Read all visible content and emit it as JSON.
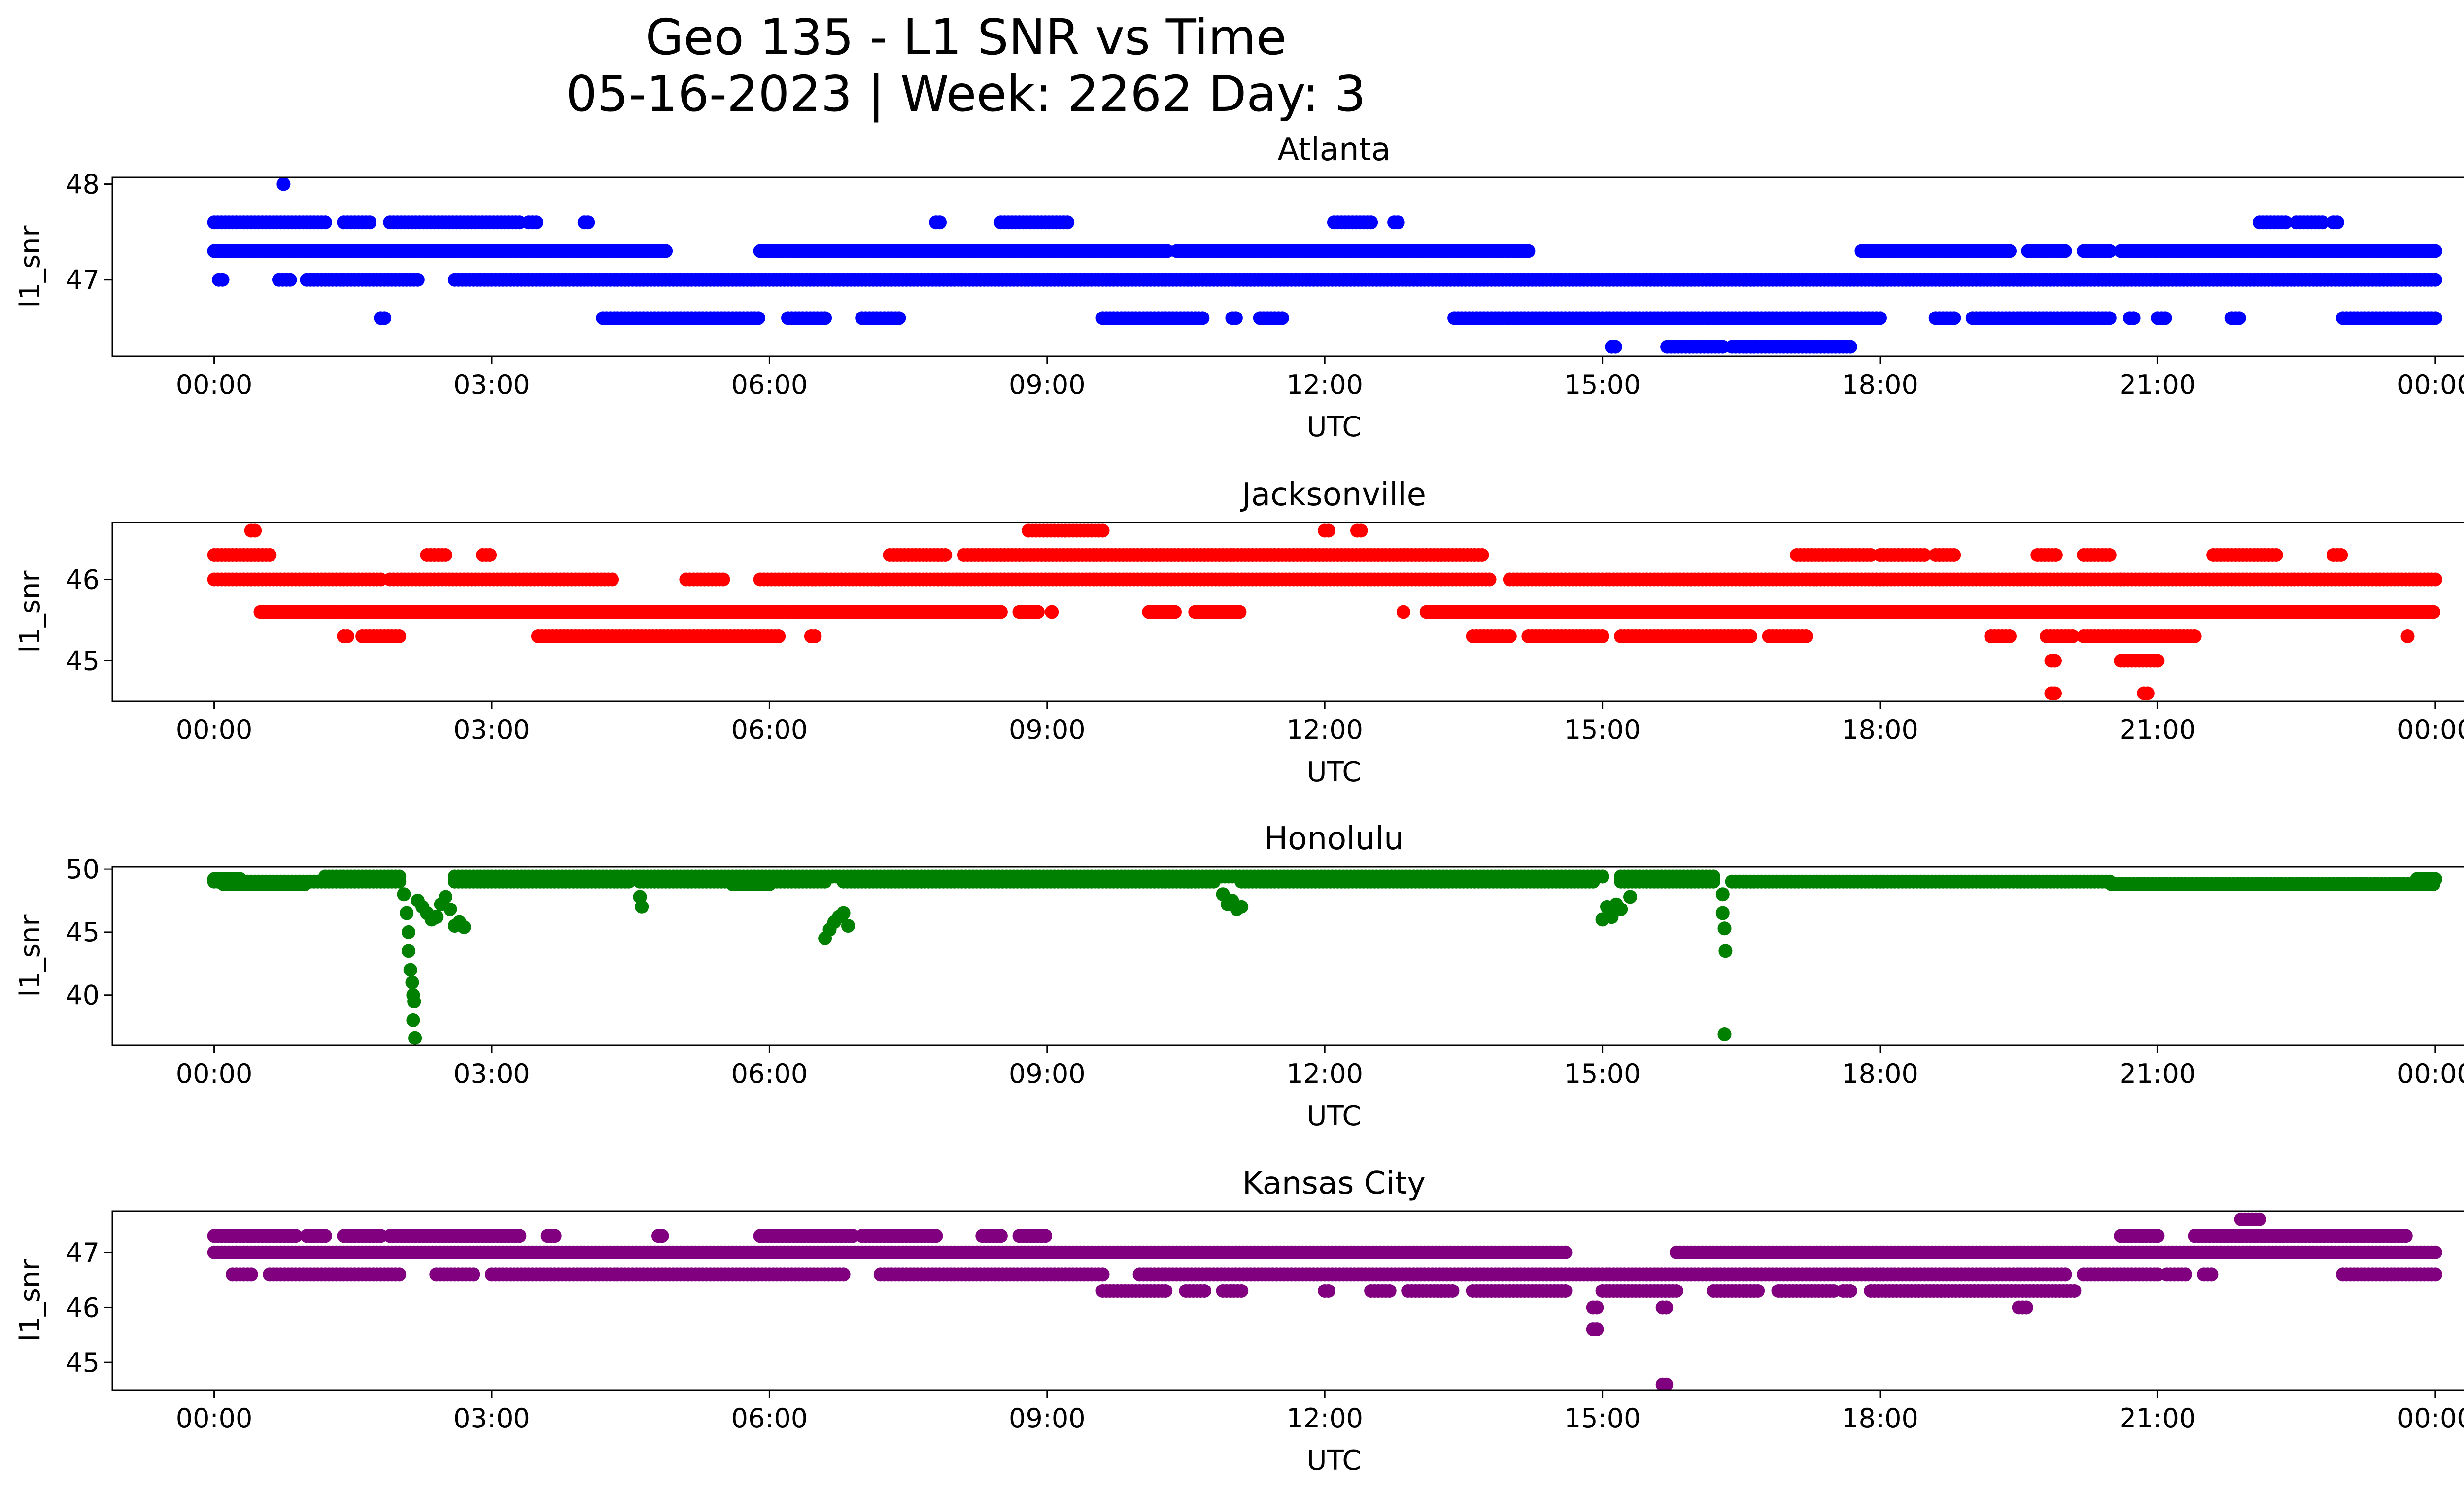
{
  "figure": {
    "title_line1": "Geo 135 - L1 SNR vs Time",
    "title_line2": "05-16-2023 | Week: 2262 Day: 3"
  },
  "chart_data": [
    {
      "type": "scatter",
      "title": "Atlanta",
      "xlabel": "UTC",
      "ylabel": "l1_snr",
      "color": "#0000ff",
      "xlim": [
        -1.1,
        25.3
      ],
      "ylim": [
        46.2,
        48.07
      ],
      "xticks": [
        "00:00",
        "03:00",
        "06:00",
        "09:00",
        "12:00",
        "15:00",
        "18:00",
        "21:00",
        "00:00"
      ],
      "yticks": [
        47,
        48
      ],
      "series": [
        {
          "y": 47.3,
          "ranges": [
            [
              0.0,
              4.6
            ],
            [
              4.6,
              4.9
            ],
            [
              5.9,
              10.3
            ],
            [
              10.4,
              14.2
            ],
            [
              17.8,
              19.4
            ],
            [
              19.6,
              20.0
            ],
            [
              20.2,
              20.5
            ],
            [
              20.6,
              24.0
            ]
          ]
        },
        {
          "y": 47.0,
          "ranges": [
            [
              0.05,
              0.1
            ],
            [
              0.7,
              0.85
            ],
            [
              1.0,
              2.2
            ],
            [
              2.6,
              24.0
            ]
          ]
        },
        {
          "y": 47.6,
          "ranges": [
            [
              0.0,
              1.2
            ],
            [
              1.4,
              1.7
            ],
            [
              1.9,
              3.3
            ],
            [
              3.4,
              3.5
            ],
            [
              4.0,
              4.05
            ],
            [
              7.8,
              7.85
            ],
            [
              8.5,
              9.25
            ],
            [
              12.1,
              12.5
            ],
            [
              12.75,
              12.8
            ],
            [
              22.1,
              22.4
            ],
            [
              22.5,
              22.8
            ],
            [
              22.9,
              22.95
            ]
          ]
        },
        {
          "y": 46.6,
          "ranges": [
            [
              1.8,
              1.85
            ],
            [
              4.2,
              5.9
            ],
            [
              6.2,
              6.6
            ],
            [
              7.0,
              7.4
            ],
            [
              9.6,
              10.7
            ],
            [
              11.0,
              11.05
            ],
            [
              11.3,
              11.55
            ],
            [
              13.4,
              18.0
            ],
            [
              18.6,
              18.8
            ],
            [
              19.0,
              20.5
            ],
            [
              20.7,
              20.75
            ],
            [
              21.0,
              21.1
            ],
            [
              21.8,
              21.9
            ],
            [
              23.0,
              24.0
            ]
          ]
        },
        {
          "y": 46.3,
          "ranges": [
            [
              15.1,
              15.15
            ],
            [
              15.7,
              16.3
            ],
            [
              16.4,
              17.7
            ]
          ]
        }
      ],
      "points": [
        [
          0.75,
          48.0
        ]
      ]
    },
    {
      "type": "scatter",
      "title": "Jacksonville",
      "xlabel": "UTC",
      "ylabel": "l1_snr",
      "color": "#ff0000",
      "xlim": [
        -1.1,
        25.3
      ],
      "ylim": [
        44.5,
        46.7
      ],
      "xticks": [
        "00:00",
        "03:00",
        "06:00",
        "09:00",
        "12:00",
        "15:00",
        "18:00",
        "21:00",
        "00:00"
      ],
      "yticks": [
        45,
        46
      ],
      "series": [
        {
          "y": 46.0,
          "ranges": [
            [
              0.0,
              1.8
            ],
            [
              1.9,
              4.3
            ],
            [
              5.1,
              5.5
            ],
            [
              5.9,
              13.8
            ],
            [
              14.0,
              24.0
            ]
          ]
        },
        {
          "y": 45.6,
          "ranges": [
            [
              0.5,
              8.5
            ],
            [
              8.7,
              8.9
            ],
            [
              10.1,
              10.4
            ],
            [
              10.6,
              11.1
            ],
            [
              13.1,
              24.0
            ]
          ]
        },
        {
          "y": 46.3,
          "ranges": [
            [
              0.0,
              0.6
            ],
            [
              2.3,
              2.5
            ],
            [
              2.9,
              3.0
            ],
            [
              7.3,
              7.9
            ],
            [
              8.1,
              13.7
            ],
            [
              17.1,
              17.9
            ],
            [
              18.0,
              18.5
            ],
            [
              18.6,
              18.8
            ],
            [
              19.7,
              19.9
            ],
            [
              20.2,
              20.5
            ],
            [
              21.6,
              22.3
            ],
            [
              22.9,
              23.0
            ]
          ]
        },
        {
          "y": 46.6,
          "ranges": [
            [
              0.4,
              0.45
            ],
            [
              8.8,
              9.6
            ],
            [
              12.0,
              12.05
            ],
            [
              12.35,
              12.4
            ]
          ]
        },
        {
          "y": 45.3,
          "ranges": [
            [
              1.4,
              1.45
            ],
            [
              1.6,
              2.0
            ],
            [
              3.5,
              6.1
            ],
            [
              6.45,
              6.5
            ],
            [
              13.6,
              14.0
            ],
            [
              14.2,
              15.0
            ],
            [
              15.2,
              16.6
            ],
            [
              16.8,
              17.2
            ],
            [
              19.2,
              19.4
            ],
            [
              19.8,
              20.1
            ],
            [
              20.2,
              21.4
            ]
          ]
        },
        {
          "y": 45.0,
          "ranges": [
            [
              19.85,
              19.9
            ],
            [
              20.6,
              21.0
            ]
          ]
        },
        {
          "y": 44.6,
          "ranges": [
            [
              19.85,
              19.9
            ],
            [
              20.85,
              20.9
            ]
          ]
        }
      ],
      "points": [
        [
          9.05,
          45.6
        ],
        [
          12.85,
          45.6
        ],
        [
          20.6,
          46.0
        ],
        [
          23.7,
          45.3
        ]
      ]
    },
    {
      "type": "scatter",
      "title": "Honolulu",
      "xlabel": "UTC",
      "ylabel": "l1_snr",
      "color": "#008000",
      "xlim": [
        -1.1,
        25.3
      ],
      "ylim": [
        36.0,
        50.2
      ],
      "xticks": [
        "00:00",
        "03:00",
        "06:00",
        "09:00",
        "12:00",
        "15:00",
        "18:00",
        "21:00",
        "00:00"
      ],
      "yticks": [
        40,
        45,
        50
      ],
      "series": [
        {
          "y": 49.0,
          "ranges": [
            [
              0.0,
              2.0
            ],
            [
              2.6,
              4.5
            ],
            [
              4.6,
              6.6
            ],
            [
              6.8,
              10.8
            ],
            [
              11.1,
              14.9
            ],
            [
              15.2,
              16.2
            ],
            [
              16.4,
              20.5
            ]
          ]
        },
        {
          "y": 48.8,
          "ranges": [
            [
              0.1,
              1.0
            ],
            [
              5.6,
              6.0
            ],
            [
              20.5,
              24.0
            ]
          ]
        },
        {
          "y": 49.4,
          "ranges": [
            [
              1.2,
              2.0
            ],
            [
              2.6,
              15.0
            ],
            [
              15.2,
              16.2
            ]
          ]
        },
        {
          "y": 49.2,
          "ranges": [
            [
              0.0,
              0.3
            ],
            [
              23.8,
              24.0
            ]
          ]
        }
      ],
      "points": [
        [
          2.05,
          48.0
        ],
        [
          2.08,
          46.5
        ],
        [
          2.1,
          45.0
        ],
        [
          2.1,
          43.5
        ],
        [
          2.12,
          42.0
        ],
        [
          2.14,
          41.0
        ],
        [
          2.15,
          40.0
        ],
        [
          2.16,
          39.5
        ],
        [
          2.15,
          38.0
        ],
        [
          2.17,
          36.6
        ],
        [
          2.2,
          47.5
        ],
        [
          2.25,
          47.0
        ],
        [
          2.3,
          46.5
        ],
        [
          2.35,
          46.0
        ],
        [
          2.4,
          46.2
        ],
        [
          2.45,
          47.2
        ],
        [
          2.5,
          47.8
        ],
        [
          2.55,
          46.8
        ],
        [
          2.6,
          45.5
        ],
        [
          2.65,
          45.8
        ],
        [
          2.7,
          45.4
        ],
        [
          4.6,
          47.8
        ],
        [
          4.62,
          47.0
        ],
        [
          6.6,
          44.5
        ],
        [
          6.65,
          45.2
        ],
        [
          6.7,
          45.8
        ],
        [
          6.75,
          46.2
        ],
        [
          6.8,
          46.5
        ],
        [
          6.85,
          45.5
        ],
        [
          10.9,
          48.0
        ],
        [
          10.95,
          47.2
        ],
        [
          11.0,
          47.5
        ],
        [
          11.05,
          46.8
        ],
        [
          11.1,
          47.0
        ],
        [
          15.0,
          46.0
        ],
        [
          15.05,
          47.0
        ],
        [
          15.1,
          46.2
        ],
        [
          15.15,
          47.2
        ],
        [
          15.2,
          46.8
        ],
        [
          15.3,
          47.8
        ],
        [
          16.3,
          48.0
        ],
        [
          16.3,
          46.5
        ],
        [
          16.32,
          45.3
        ],
        [
          16.33,
          43.5
        ],
        [
          16.32,
          36.9
        ]
      ]
    },
    {
      "type": "scatter",
      "title": "Kansas City",
      "xlabel": "UTC",
      "ylabel": "l1_snr",
      "color": "#800080",
      "xlim": [
        -1.1,
        25.3
      ],
      "ylim": [
        44.5,
        47.75
      ],
      "xticks": [
        "00:00",
        "03:00",
        "06:00",
        "09:00",
        "12:00",
        "15:00",
        "18:00",
        "21:00",
        "00:00"
      ],
      "yticks": [
        45,
        46,
        47
      ],
      "series": [
        {
          "y": 47.0,
          "ranges": [
            [
              0.0,
              14.6
            ],
            [
              15.8,
              24.0
            ]
          ]
        },
        {
          "y": 46.6,
          "ranges": [
            [
              0.2,
              0.4
            ],
            [
              0.6,
              2.0
            ],
            [
              2.4,
              2.8
            ],
            [
              3.0,
              6.8
            ],
            [
              7.2,
              9.6
            ],
            [
              10.0,
              20.0
            ],
            [
              20.2,
              21.0
            ],
            [
              21.1,
              21.3
            ],
            [
              21.5,
              21.6
            ],
            [
              23.0,
              24.0
            ]
          ]
        },
        {
          "y": 47.3,
          "ranges": [
            [
              0.0,
              0.9
            ],
            [
              1.0,
              1.2
            ],
            [
              1.4,
              1.8
            ],
            [
              1.9,
              3.3
            ],
            [
              3.6,
              3.7
            ],
            [
              4.8,
              4.85
            ],
            [
              5.9,
              6.9
            ],
            [
              7.0,
              7.8
            ],
            [
              8.3,
              8.5
            ],
            [
              8.7,
              9.0
            ],
            [
              20.6,
              21.0
            ],
            [
              21.4,
              23.7
            ]
          ]
        },
        {
          "y": 46.3,
          "ranges": [
            [
              9.6,
              10.3
            ],
            [
              10.5,
              10.7
            ],
            [
              10.9,
              11.1
            ],
            [
              12.0,
              12.05
            ],
            [
              12.5,
              12.7
            ],
            [
              12.9,
              13.4
            ],
            [
              13.6,
              14.6
            ],
            [
              15.0,
              15.8
            ],
            [
              16.2,
              16.7
            ],
            [
              16.9,
              17.5
            ],
            [
              17.6,
              17.7
            ],
            [
              17.9,
              20.1
            ]
          ]
        },
        {
          "y": 47.6,
          "ranges": [
            [
              21.9,
              22.1
            ]
          ]
        },
        {
          "y": 46.0,
          "ranges": [
            [
              14.9,
              14.95
            ],
            [
              15.65,
              15.7
            ],
            [
              19.5,
              19.6
            ]
          ]
        },
        {
          "y": 45.6,
          "ranges": [
            [
              14.9,
              14.95
            ]
          ]
        },
        {
          "y": 44.6,
          "ranges": [
            [
              15.65,
              15.7
            ]
          ]
        }
      ],
      "points": []
    }
  ]
}
